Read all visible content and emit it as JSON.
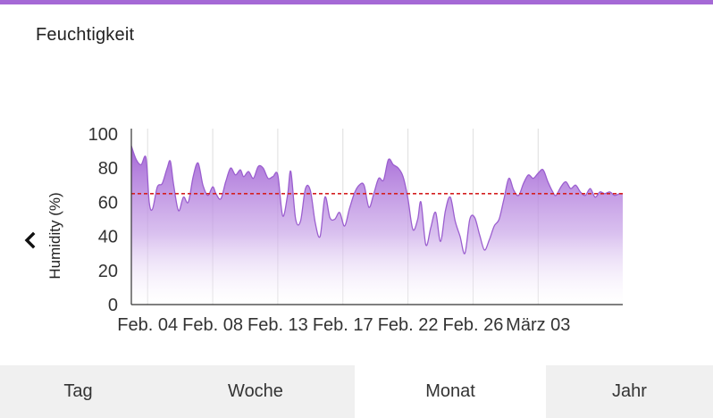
{
  "card": {
    "title": "Feuchtigkeit"
  },
  "tabs": [
    {
      "label": "Tag",
      "active": false
    },
    {
      "label": "Woche",
      "active": false
    },
    {
      "label": "Monat",
      "active": true
    },
    {
      "label": "Jahr",
      "active": false
    }
  ],
  "colors": {
    "accent": "#a569d6",
    "line": "#9b5fcf",
    "reference": "#d42020"
  },
  "icons": {
    "back": "chevron-left-icon"
  },
  "chart_data": {
    "type": "area",
    "title": "",
    "xlabel": "",
    "ylabel": "Humidity (%)",
    "ylim": [
      0,
      100
    ],
    "yticks": [
      0,
      20,
      40,
      60,
      80,
      100
    ],
    "xlim": [
      0,
      30.2
    ],
    "xticks": [
      {
        "x": 1,
        "label": "Feb. 04"
      },
      {
        "x": 5,
        "label": "Feb. 08"
      },
      {
        "x": 9,
        "label": "Feb. 13"
      },
      {
        "x": 13,
        "label": "Feb. 17"
      },
      {
        "x": 17,
        "label": "Feb. 22"
      },
      {
        "x": 21,
        "label": "Feb. 26"
      },
      {
        "x": 25,
        "label": "März 03"
      }
    ],
    "reference_line": 65,
    "grid": "vertical",
    "series": [
      {
        "x": [
          0,
          0.3,
          0.6,
          0.9,
          1.1,
          1.3,
          1.6,
          1.9,
          2.2,
          2.4,
          2.6,
          2.9,
          3.2,
          3.5,
          3.8,
          4.1,
          4.4,
          4.7,
          5.0,
          5.2,
          5.5,
          5.8,
          6.1,
          6.4,
          6.7,
          6.9,
          7.2,
          7.5,
          7.8,
          8.1,
          8.4,
          8.7,
          9.0,
          9.3,
          9.6,
          9.8,
          10.1,
          10.4,
          10.7,
          11.0,
          11.3,
          11.6,
          11.9,
          12.2,
          12.5,
          12.8,
          13.1,
          13.4,
          13.7,
          14.0,
          14.3,
          14.6,
          14.9,
          15.2,
          15.5,
          15.8,
          16.1,
          16.4,
          16.7,
          17.0,
          17.3,
          17.6,
          17.8,
          18.1,
          18.4,
          18.7,
          19.0,
          19.3,
          19.6,
          19.9,
          20.2,
          20.5,
          20.8,
          21.1,
          21.4,
          21.7,
          22.0,
          22.3,
          22.6,
          22.9,
          23.2,
          23.5,
          23.8,
          24.1,
          24.4,
          24.7,
          25.0,
          25.3,
          25.6,
          25.9,
          26.1,
          26.4,
          26.7,
          27.0,
          27.3,
          27.6,
          27.9,
          28.2,
          28.5,
          28.8,
          29.1,
          29.4,
          29.7,
          30.0,
          30.2
        ],
        "y": [
          93,
          85,
          82,
          86,
          60,
          56,
          69,
          71,
          80,
          84,
          70,
          55,
          63,
          60,
          75,
          83,
          70,
          64,
          69,
          65,
          62,
          72,
          80,
          76,
          79,
          75,
          78,
          74,
          81,
          80,
          74,
          75,
          76,
          52,
          64,
          78,
          50,
          49,
          68,
          67,
          48,
          40,
          63,
          51,
          50,
          54,
          46,
          56,
          65,
          70,
          70,
          57,
          65,
          74,
          73,
          85,
          82,
          80,
          75,
          62,
          44,
          50,
          60,
          35,
          45,
          54,
          37,
          55,
          63,
          49,
          40,
          30,
          50,
          51,
          41,
          32,
          38,
          46,
          50,
          62,
          74,
          67,
          64,
          71,
          76,
          74,
          77,
          79,
          72,
          66,
          64,
          69,
          72,
          68,
          70,
          66,
          64,
          68,
          63,
          66,
          65,
          66,
          64,
          65,
          65
        ]
      }
    ]
  }
}
